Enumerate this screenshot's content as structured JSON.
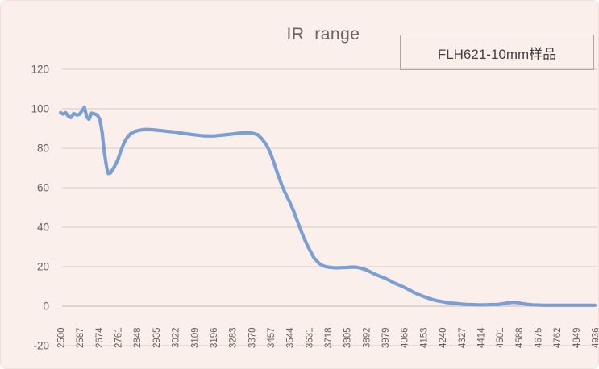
{
  "chart_data": {
    "type": "line",
    "title": "IR  range",
    "legend_position": "top-right",
    "grid": "horizontal",
    "x_axis": {
      "tick_labels": [
        "2500",
        "2587",
        "2674",
        "2761",
        "2848",
        "2935",
        "3022",
        "3109",
        "3196",
        "3283",
        "3370",
        "3457",
        "3544",
        "3631",
        "3718",
        "3805",
        "3892",
        "3979",
        "4066",
        "4153",
        "4240",
        "4327",
        "4414",
        "4501",
        "4588",
        "4675",
        "4762",
        "4849",
        "4936"
      ],
      "min": 2500,
      "max": 4936,
      "label_step": 87,
      "label_rotation_deg": -90
    },
    "y_axis": {
      "ticks": [
        120,
        100,
        80,
        60,
        40,
        20,
        0,
        -20
      ],
      "min": -20,
      "max": 120
    },
    "series": [
      {
        "name": "FLH621-10mm样品",
        "color": "#7b9fd1",
        "points": [
          [
            2500,
            98
          ],
          [
            2512,
            97.3
          ],
          [
            2524,
            98
          ],
          [
            2536,
            96.2
          ],
          [
            2548,
            95.6
          ],
          [
            2560,
            97.6
          ],
          [
            2574,
            96.8
          ],
          [
            2587,
            97.2
          ],
          [
            2598,
            99
          ],
          [
            2609,
            100.8
          ],
          [
            2620,
            95.8
          ],
          [
            2630,
            94.6
          ],
          [
            2642,
            97.8
          ],
          [
            2656,
            97.4
          ],
          [
            2668,
            96.8
          ],
          [
            2680,
            94.5
          ],
          [
            2690,
            88
          ],
          [
            2700,
            78
          ],
          [
            2710,
            70.5
          ],
          [
            2718,
            67.2
          ],
          [
            2728,
            67.5
          ],
          [
            2740,
            69.5
          ],
          [
            2752,
            72
          ],
          [
            2761,
            74
          ],
          [
            2775,
            78.5
          ],
          [
            2790,
            82.8
          ],
          [
            2805,
            85.6
          ],
          [
            2820,
            87.4
          ],
          [
            2835,
            88.3
          ],
          [
            2848,
            88.8
          ],
          [
            2865,
            89.2
          ],
          [
            2880,
            89.5
          ],
          [
            2900,
            89.5
          ],
          [
            2935,
            89.2
          ],
          [
            2960,
            88.9
          ],
          [
            3000,
            88.4
          ],
          [
            3022,
            88.2
          ],
          [
            3060,
            87.5
          ],
          [
            3109,
            86.8
          ],
          [
            3150,
            86.3
          ],
          [
            3196,
            86.2
          ],
          [
            3240,
            86.7
          ],
          [
            3283,
            87.2
          ],
          [
            3320,
            87.7
          ],
          [
            3350,
            87.9
          ],
          [
            3370,
            87.8
          ],
          [
            3400,
            86.8
          ],
          [
            3420,
            84.5
          ],
          [
            3440,
            81.5
          ],
          [
            3457,
            77.5
          ],
          [
            3475,
            72
          ],
          [
            3490,
            67
          ],
          [
            3510,
            61
          ],
          [
            3530,
            56
          ],
          [
            3544,
            53
          ],
          [
            3565,
            47.5
          ],
          [
            3590,
            40
          ],
          [
            3610,
            34.5
          ],
          [
            3631,
            29.5
          ],
          [
            3655,
            24.5
          ],
          [
            3680,
            21.5
          ],
          [
            3700,
            20.3
          ],
          [
            3718,
            19.8
          ],
          [
            3740,
            19.5
          ],
          [
            3760,
            19.4
          ],
          [
            3780,
            19.5
          ],
          [
            3805,
            19.6
          ],
          [
            3830,
            19.8
          ],
          [
            3850,
            19.7
          ],
          [
            3870,
            19.2
          ],
          [
            3892,
            18.4
          ],
          [
            3915,
            17.2
          ],
          [
            3940,
            15.9
          ],
          [
            3960,
            15
          ],
          [
            3979,
            14.2
          ],
          [
            4000,
            13
          ],
          [
            4020,
            11.8
          ],
          [
            4045,
            10.6
          ],
          [
            4066,
            9.6
          ],
          [
            4090,
            8.2
          ],
          [
            4110,
            7
          ],
          [
            4130,
            6
          ],
          [
            4153,
            5
          ],
          [
            4175,
            4.1
          ],
          [
            4200,
            3.2
          ],
          [
            4220,
            2.7
          ],
          [
            4240,
            2.3
          ],
          [
            4265,
            1.8
          ],
          [
            4290,
            1.5
          ],
          [
            4310,
            1.3
          ],
          [
            4327,
            1.1
          ],
          [
            4350,
            0.9
          ],
          [
            4375,
            0.8
          ],
          [
            4400,
            0.7
          ],
          [
            4414,
            0.7
          ],
          [
            4440,
            0.7
          ],
          [
            4465,
            0.8
          ],
          [
            4490,
            0.9
          ],
          [
            4501,
            1.0
          ],
          [
            4520,
            1.3
          ],
          [
            4540,
            1.7
          ],
          [
            4560,
            1.9
          ],
          [
            4575,
            1.9
          ],
          [
            4588,
            1.7
          ],
          [
            4605,
            1.3
          ],
          [
            4625,
            1.0
          ],
          [
            4650,
            0.7
          ],
          [
            4675,
            0.6
          ],
          [
            4700,
            0.5
          ],
          [
            4730,
            0.5
          ],
          [
            4762,
            0.5
          ],
          [
            4800,
            0.5
          ],
          [
            4849,
            0.5
          ],
          [
            4890,
            0.5
          ],
          [
            4936,
            0.5
          ]
        ]
      }
    ]
  },
  "colors": {
    "background": "#fbefec",
    "line": "#7b9fd1",
    "gridline": "#dbc8c5",
    "axis_line": "#c9b6b3",
    "tick_text": "#6b605e",
    "title_text": "#6e6361",
    "legend_text": "#454040",
    "legend_border": "#b2a5a0"
  }
}
